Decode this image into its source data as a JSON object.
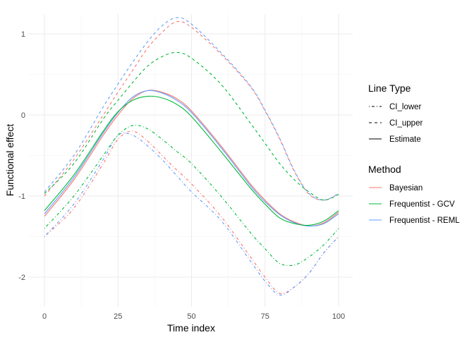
{
  "chart_data": {
    "type": "line",
    "title": "",
    "xlabel": "Time index",
    "ylabel": "Functional effect",
    "xlim": [
      -5,
      105
    ],
    "ylim": [
      -2.35,
      1.25
    ],
    "xticks": [
      0,
      25,
      50,
      75,
      100
    ],
    "yticks": [
      1,
      0,
      -1,
      -2
    ],
    "grid": true,
    "legend_placement": "right",
    "legends": [
      {
        "title": "Line Type",
        "entries": [
          {
            "label": "CI_lower",
            "dash": "dotdash"
          },
          {
            "label": "CI_upper",
            "dash": "dashed"
          },
          {
            "label": "Estimate",
            "dash": "solid"
          }
        ]
      },
      {
        "title": "Method",
        "entries": [
          {
            "label": "Bayesian",
            "color": "#F8766D"
          },
          {
            "label": "Frequentist - GCV",
            "color": "#00BA38"
          },
          {
            "label": "Frequentist - REML",
            "color": "#619CFF"
          }
        ]
      }
    ],
    "x": [
      0,
      10,
      20,
      25,
      30,
      35,
      40,
      45,
      50,
      60,
      70,
      75,
      80,
      85,
      90,
      95,
      100
    ],
    "series": [
      {
        "method": "Bayesian",
        "type": "Estimate",
        "color": "#F8766D",
        "dash": "solid",
        "values": [
          -1.25,
          -0.8,
          -0.25,
          0.0,
          0.2,
          0.3,
          0.28,
          0.2,
          0.05,
          -0.38,
          -0.85,
          -1.05,
          -1.22,
          -1.32,
          -1.37,
          -1.33,
          -1.2
        ]
      },
      {
        "method": "Frequentist - REML",
        "type": "Estimate",
        "color": "#619CFF",
        "dash": "solid",
        "values": [
          -1.22,
          -0.77,
          -0.22,
          0.03,
          0.22,
          0.3,
          0.27,
          0.18,
          0.03,
          -0.4,
          -0.87,
          -1.07,
          -1.23,
          -1.33,
          -1.37,
          -1.34,
          -1.22
        ]
      },
      {
        "method": "Frequentist - GCV",
        "type": "Estimate",
        "color": "#00BA38",
        "dash": "solid",
        "values": [
          -1.18,
          -0.74,
          -0.2,
          0.04,
          0.18,
          0.23,
          0.21,
          0.13,
          -0.02,
          -0.45,
          -0.9,
          -1.1,
          -1.27,
          -1.34,
          -1.36,
          -1.31,
          -1.18
        ]
      },
      {
        "method": "Bayesian",
        "type": "CI_upper",
        "color": "#F8766D",
        "dash": "dashed",
        "values": [
          -1.0,
          -0.55,
          0.0,
          0.28,
          0.55,
          0.82,
          1.02,
          1.15,
          1.08,
          0.75,
          0.35,
          0.05,
          -0.3,
          -0.7,
          -0.98,
          -1.05,
          -0.98
        ]
      },
      {
        "method": "Frequentist - REML",
        "type": "CI_upper",
        "color": "#619CFF",
        "dash": "dashed",
        "values": [
          -0.95,
          -0.5,
          0.1,
          0.38,
          0.65,
          0.9,
          1.1,
          1.2,
          1.12,
          0.77,
          0.36,
          0.06,
          -0.29,
          -0.69,
          -0.97,
          -1.05,
          -0.97
        ]
      },
      {
        "method": "Frequentist - GCV",
        "type": "CI_upper",
        "color": "#00BA38",
        "dash": "dashed",
        "values": [
          -0.97,
          -0.6,
          -0.05,
          0.18,
          0.4,
          0.6,
          0.72,
          0.77,
          0.7,
          0.38,
          -0.1,
          -0.35,
          -0.6,
          -0.8,
          -0.95,
          -1.05,
          -0.98
        ]
      },
      {
        "method": "Bayesian",
        "type": "CI_lower",
        "color": "#F8766D",
        "dash": "dotdash",
        "values": [
          -1.5,
          -1.15,
          -0.6,
          -0.3,
          -0.2,
          -0.32,
          -0.5,
          -0.68,
          -0.85,
          -1.25,
          -1.75,
          -2.0,
          -2.2,
          -2.12,
          -1.95,
          -1.7,
          -1.5
        ]
      },
      {
        "method": "Frequentist - REML",
        "type": "CI_lower",
        "color": "#619CFF",
        "dash": "dotdash",
        "values": [
          -1.5,
          -1.1,
          -0.55,
          -0.25,
          -0.25,
          -0.38,
          -0.55,
          -0.75,
          -0.95,
          -1.3,
          -1.8,
          -2.05,
          -2.22,
          -2.12,
          -1.95,
          -1.7,
          -1.5
        ]
      },
      {
        "method": "Frequentist - GCV",
        "type": "CI_lower",
        "color": "#00BA38",
        "dash": "dotdash",
        "values": [
          -1.4,
          -1.0,
          -0.5,
          -0.25,
          -0.13,
          -0.17,
          -0.3,
          -0.45,
          -0.6,
          -1.0,
          -1.45,
          -1.65,
          -1.83,
          -1.85,
          -1.75,
          -1.6,
          -1.4
        ]
      }
    ]
  }
}
